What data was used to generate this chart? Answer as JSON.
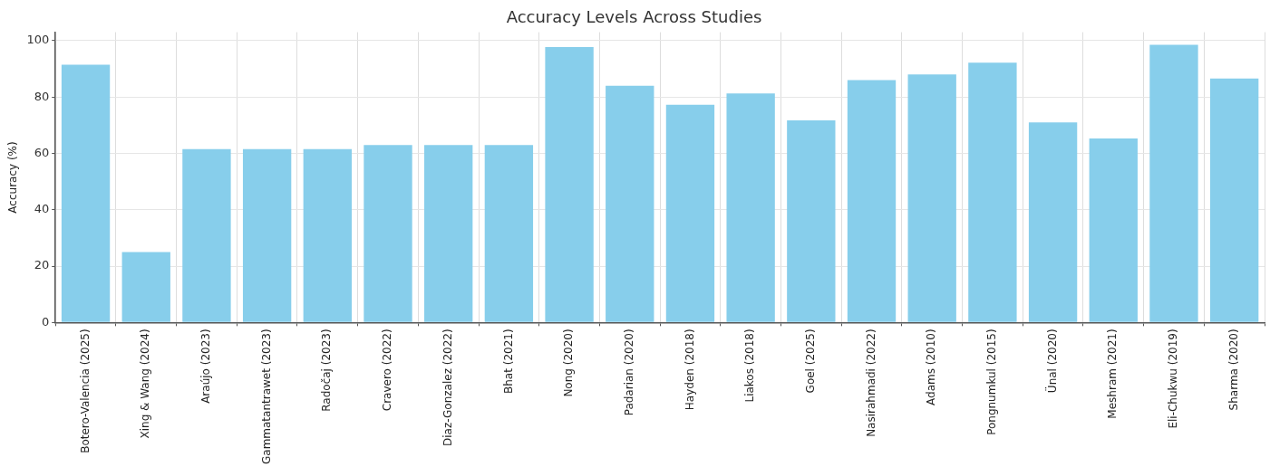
{
  "chart_data": {
    "type": "bar",
    "title": "Accuracy Levels Across Studies",
    "ylabel": "Accuracy (%)",
    "categories": [
      "Botero-Valencia (2025)",
      "Xing & Wang (2024)",
      "Araújo (2023)",
      "Gammatantrawet (2023)",
      "Radočaj (2023)",
      "Cravero (2022)",
      "Diaz-Gonzalez (2022)",
      "Bhat (2021)",
      "Nong (2020)",
      "Padarian (2020)",
      "Hayden (2018)",
      "Liakos (2018)",
      "Goel (2025)",
      "Nasirahmadi (2022)",
      "Adams (2010)",
      "Pongnumkul (2015)",
      "Ünal (2020)",
      "Meshram (2021)",
      "Eli-Chukwu (2019)",
      "Sharma (2020)"
    ],
    "values": [
      91.5,
      25,
      61.5,
      61.5,
      61.5,
      63,
      63,
      63,
      97.7,
      84,
      77.3,
      81.3,
      71.7,
      86,
      88,
      92.2,
      71,
      65.3,
      98.5,
      86.6
    ],
    "color": "#87ceeb",
    "ylim": [
      0,
      103
    ],
    "yticks": [
      0,
      20,
      40,
      60,
      80,
      100
    ],
    "grid": true
  }
}
